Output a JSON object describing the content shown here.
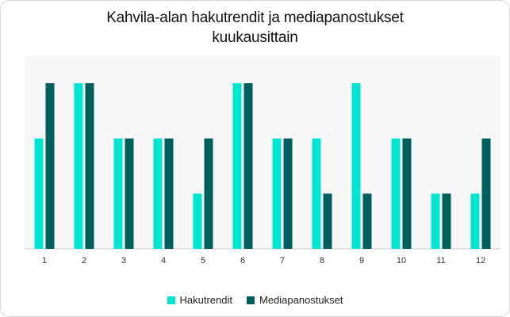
{
  "colors": {
    "series_1": "#00E5D1",
    "series_2": "#01605E",
    "plot_bg": "#F7F7F7"
  },
  "chart_data": {
    "type": "bar",
    "title_lines": [
      "Kahvila-alan hakutrendit ja mediapanostukset",
      "kuukausittain"
    ],
    "categories": [
      "1",
      "2",
      "3",
      "4",
      "5",
      "6",
      "7",
      "8",
      "9",
      "10",
      "11",
      "12"
    ],
    "series": [
      {
        "name": "Hakutrendit",
        "values": [
          2,
          3,
          2,
          2,
          1,
          3,
          2,
          2,
          3,
          2,
          1,
          1
        ]
      },
      {
        "name": "Mediapanostukset",
        "values": [
          3,
          3,
          2,
          2,
          2,
          3,
          2,
          1,
          1,
          2,
          1,
          2
        ]
      }
    ],
    "xlabel": "",
    "ylabel": "",
    "ylim": [
      0,
      3
    ],
    "grid": false,
    "legend": "bottom"
  }
}
